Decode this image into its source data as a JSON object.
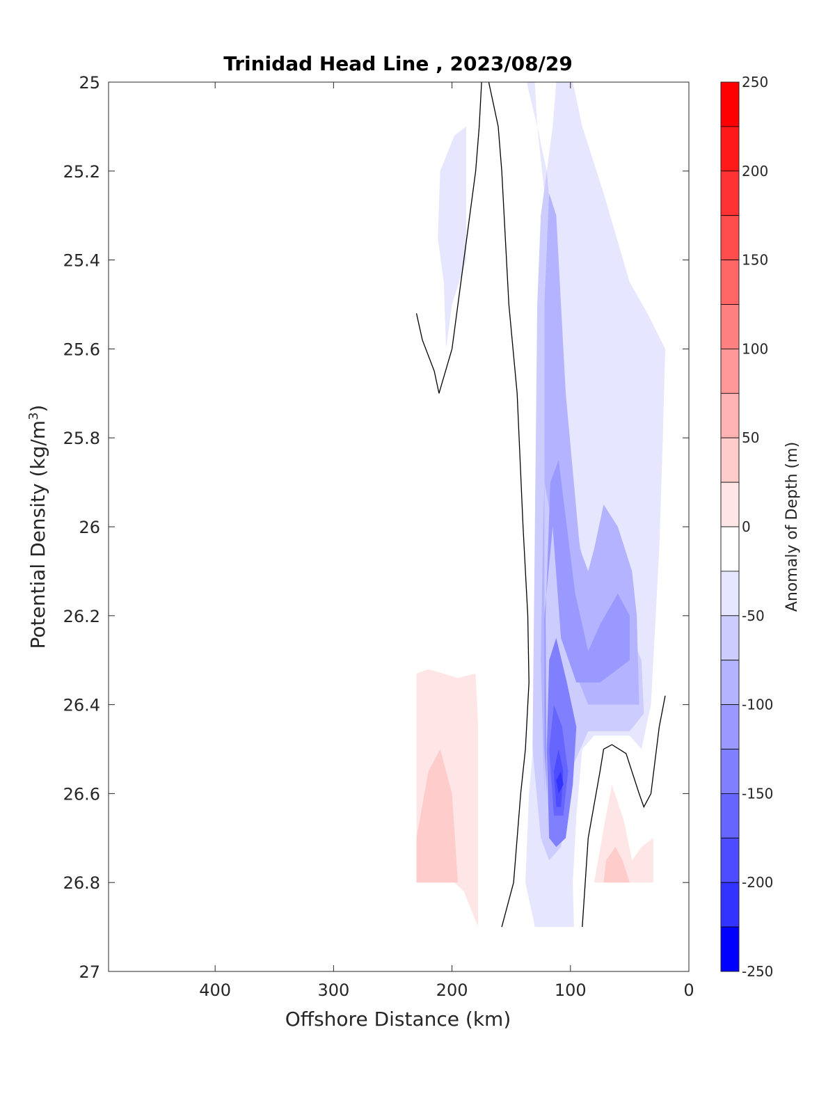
{
  "chart_data": {
    "type": "contour",
    "title": "Trinidad Head Line , 2023/08/29",
    "xlabel": "Offshore Distance (km)",
    "ylabel_main": "Potential Density (kg/m",
    "ylabel_sup": "3",
    "ylabel_close": ")",
    "colorbar_label": "Anomaly of Depth (m)",
    "xlim": [
      490,
      0
    ],
    "ylim": [
      25,
      27
    ],
    "x_reversed": true,
    "y_reversed": true,
    "x_ticks": [
      400,
      300,
      200,
      100,
      0
    ],
    "x_tick_labels": [
      "400",
      "300",
      "200",
      "100",
      "0"
    ],
    "y_ticks": [
      25,
      25.2,
      25.4,
      25.6,
      25.8,
      26,
      26.2,
      26.4,
      26.6,
      26.8,
      27
    ],
    "y_tick_labels": [
      "25",
      "25.2",
      "25.4",
      "25.6",
      "25.8",
      "26",
      "26.2",
      "26.4",
      "26.6",
      "26.8",
      "27"
    ],
    "colorbar": {
      "range": [
        -250,
        250
      ],
      "ticks": [
        250,
        200,
        150,
        100,
        50,
        0,
        -50,
        -100,
        -150,
        -200,
        -250
      ],
      "tick_labels": [
        "250",
        "200",
        "150",
        "100",
        "50",
        "0",
        "-50",
        "-100",
        "-150",
        "-200",
        "-250"
      ],
      "levels": [
        {
          "from": 225,
          "to": 250,
          "color": "#ff0000"
        },
        {
          "from": 200,
          "to": 225,
          "color": "#ff1919"
        },
        {
          "from": 175,
          "to": 200,
          "color": "#ff3333"
        },
        {
          "from": 150,
          "to": 175,
          "color": "#ff4d4d"
        },
        {
          "from": 125,
          "to": 150,
          "color": "#ff6666"
        },
        {
          "from": 100,
          "to": 125,
          "color": "#ff8080"
        },
        {
          "from": 75,
          "to": 100,
          "color": "#ff9999"
        },
        {
          "from": 50,
          "to": 75,
          "color": "#ffb3b3"
        },
        {
          "from": 25,
          "to": 50,
          "color": "#ffcccc"
        },
        {
          "from": 0,
          "to": 25,
          "color": "#ffe6e6"
        },
        {
          "from": -25,
          "to": 0,
          "color": "#ffffff"
        },
        {
          "from": -50,
          "to": -25,
          "color": "#e6e6ff"
        },
        {
          "from": -75,
          "to": -50,
          "color": "#ccccff"
        },
        {
          "from": -100,
          "to": -75,
          "color": "#b3b3ff"
        },
        {
          "from": -125,
          "to": -100,
          "color": "#9999ff"
        },
        {
          "from": -150,
          "to": -125,
          "color": "#8080ff"
        },
        {
          "from": -175,
          "to": -150,
          "color": "#6666ff"
        },
        {
          "from": -200,
          "to": -175,
          "color": "#4d4dff"
        },
        {
          "from": -225,
          "to": -200,
          "color": "#3333ff"
        },
        {
          "from": -250,
          "to": -225,
          "color": "#0000ff"
        }
      ]
    },
    "filled_regions": [
      {
        "level": -50,
        "color": "#e6e6ff",
        "points": [
          [
            137,
            25
          ],
          [
            128,
            25.1
          ],
          [
            120,
            25.3
          ],
          [
            122,
            25.8
          ],
          [
            125,
            26.3
          ],
          [
            135,
            26.6
          ],
          [
            138,
            26.8
          ],
          [
            130,
            26.9
          ],
          [
            97,
            26.9
          ],
          [
            98,
            26.8
          ],
          [
            95,
            26.65
          ],
          [
            90,
            26.5
          ],
          [
            80,
            26.47
          ],
          [
            50,
            26.47
          ],
          [
            40,
            26.5
          ],
          [
            32,
            26.4
          ],
          [
            25,
            26.05
          ],
          [
            22,
            25.8
          ],
          [
            20,
            25.6
          ],
          [
            35,
            25.52
          ],
          [
            50,
            25.45
          ],
          [
            72,
            25.25
          ],
          [
            90,
            25.1
          ],
          [
            98,
            25
          ],
          [
            112,
            25
          ],
          [
            115,
            25.1
          ],
          [
            120,
            25.2
          ],
          [
            128,
            25.1
          ],
          [
            130,
            25
          ]
        ]
      },
      {
        "level": -50,
        "color": "#e6e6ff",
        "points": [
          [
            188,
            25.1
          ],
          [
            198,
            25.12
          ],
          [
            210,
            25.2
          ],
          [
            212,
            25.35
          ],
          [
            207,
            25.45
          ],
          [
            205,
            25.6
          ],
          [
            200,
            25.5
          ],
          [
            188,
            25.4
          ]
        ]
      },
      {
        "level": -75,
        "color": "#ccccff",
        "points": [
          [
            125,
            26.7
          ],
          [
            132,
            26.5
          ],
          [
            130,
            26.0
          ],
          [
            128,
            25.5
          ],
          [
            125,
            25.3
          ],
          [
            120,
            25.2
          ],
          [
            110,
            25.5
          ],
          [
            95,
            26.0
          ],
          [
            80,
            26.2
          ],
          [
            60,
            26.2
          ],
          [
            48,
            26.25
          ],
          [
            40,
            26.3
          ],
          [
            38,
            26.42
          ],
          [
            50,
            26.46
          ],
          [
            85,
            26.46
          ],
          [
            100,
            26.55
          ],
          [
            108,
            26.72
          ],
          [
            118,
            26.75
          ]
        ]
      },
      {
        "level": -100,
        "color": "#b3b3ff",
        "points": [
          [
            122,
            26.6
          ],
          [
            125,
            26.3
          ],
          [
            123,
            26.0
          ],
          [
            122,
            25.9
          ],
          [
            115,
            26.0
          ],
          [
            100,
            26.3
          ],
          [
            85,
            26.4
          ],
          [
            60,
            26.4
          ],
          [
            42,
            26.4
          ],
          [
            44,
            26.2
          ],
          [
            48,
            26.1
          ],
          [
            60,
            26.0
          ],
          [
            72,
            25.95
          ],
          [
            80,
            26.05
          ],
          [
            85,
            26.1
          ],
          [
            92,
            26.05
          ],
          [
            104,
            25.7
          ],
          [
            112,
            25.3
          ],
          [
            118,
            25.25
          ],
          [
            122,
            25.5
          ]
        ]
      },
      {
        "level": -125,
        "color": "#9999ff",
        "points": [
          [
            120,
            26.6
          ],
          [
            122,
            26.5
          ],
          [
            122,
            26.2
          ],
          [
            115,
            26.0
          ],
          [
            108,
            26.25
          ],
          [
            95,
            26.35
          ],
          [
            75,
            26.35
          ],
          [
            60,
            26.32
          ],
          [
            50,
            26.3
          ],
          [
            50,
            26.2
          ],
          [
            60,
            26.15
          ],
          [
            75,
            26.22
          ],
          [
            85,
            26.28
          ],
          [
            96,
            26.15
          ],
          [
            110,
            25.85
          ],
          [
            117,
            25.9
          ],
          [
            121,
            26.2
          ]
        ]
      },
      {
        "level": -150,
        "color": "#8080ff",
        "points": [
          [
            118,
            26.7
          ],
          [
            120,
            26.5
          ],
          [
            118,
            26.3
          ],
          [
            112,
            26.25
          ],
          [
            103,
            26.35
          ],
          [
            95,
            26.45
          ],
          [
            98,
            26.58
          ],
          [
            104,
            26.7
          ],
          [
            112,
            26.72
          ]
        ]
      },
      {
        "level": -175,
        "color": "#6666ff",
        "points": [
          [
            114,
            26.65
          ],
          [
            118,
            26.5
          ],
          [
            114,
            26.4
          ],
          [
            107,
            26.45
          ],
          [
            102,
            26.55
          ],
          [
            106,
            26.65
          ]
        ]
      },
      {
        "level": -200,
        "color": "#4d4dff",
        "points": [
          [
            112,
            26.63
          ],
          [
            114,
            26.55
          ],
          [
            110,
            26.5
          ],
          [
            106,
            26.55
          ],
          [
            108,
            26.63
          ]
        ]
      },
      {
        "level": -225,
        "color": "#3333ff",
        "points": [
          [
            110,
            26.6
          ],
          [
            112,
            26.57
          ],
          [
            108,
            26.55
          ],
          [
            106,
            26.58
          ]
        ]
      },
      {
        "level": 25,
        "color": "#ffe6e6",
        "points": [
          [
            230,
            26.33
          ],
          [
            220,
            26.32
          ],
          [
            195,
            26.34
          ],
          [
            180,
            26.33
          ],
          [
            178,
            26.45
          ],
          [
            178,
            26.9
          ],
          [
            190,
            26.82
          ],
          [
            198,
            26.8
          ],
          [
            230,
            26.8
          ]
        ]
      },
      {
        "level": 50,
        "color": "#ffcccc",
        "points": [
          [
            230,
            26.7
          ],
          [
            220,
            26.55
          ],
          [
            210,
            26.5
          ],
          [
            200,
            26.6
          ],
          [
            195,
            26.8
          ],
          [
            230,
            26.8
          ]
        ]
      },
      {
        "level": 25,
        "color": "#ffe6e6",
        "points": [
          [
            80,
            26.8
          ],
          [
            70,
            26.65
          ],
          [
            65,
            26.58
          ],
          [
            55,
            26.66
          ],
          [
            48,
            26.75
          ],
          [
            40,
            26.72
          ],
          [
            30,
            26.7
          ],
          [
            30,
            26.8
          ]
        ]
      },
      {
        "level": 50,
        "color": "#ffcccc",
        "points": [
          [
            72,
            26.8
          ],
          [
            70,
            26.75
          ],
          [
            62,
            26.72
          ],
          [
            56,
            26.75
          ],
          [
            50,
            26.8
          ]
        ]
      }
    ],
    "zero_contours": [
      [
        [
          169,
          25
        ],
        [
          161,
          25.1
        ],
        [
          158,
          25.2
        ],
        [
          152,
          25.5
        ],
        [
          145,
          25.7
        ],
        [
          140,
          26.0
        ],
        [
          136,
          26.2
        ],
        [
          135,
          26.35
        ],
        [
          138,
          26.5
        ],
        [
          142,
          26.6
        ],
        [
          148,
          26.8
        ],
        [
          158,
          26.9
        ]
      ],
      [
        [
          230,
          25.52
        ],
        [
          225,
          25.58
        ],
        [
          215,
          25.65
        ],
        [
          211,
          25.7
        ],
        [
          200,
          25.6
        ],
        [
          190,
          25.4
        ],
        [
          185,
          25.3
        ],
        [
          180,
          25.2
        ],
        [
          177,
          25.1
        ],
        [
          175,
          25
        ]
      ],
      [
        [
          90,
          26.9
        ],
        [
          85,
          26.7
        ],
        [
          75,
          26.55
        ],
        [
          72,
          26.5
        ],
        [
          65,
          26.49
        ],
        [
          53,
          26.51
        ],
        [
          42,
          26.6
        ],
        [
          38,
          26.63
        ],
        [
          32,
          26.6
        ],
        [
          25,
          26.45
        ],
        [
          20,
          26.38
        ]
      ]
    ]
  }
}
